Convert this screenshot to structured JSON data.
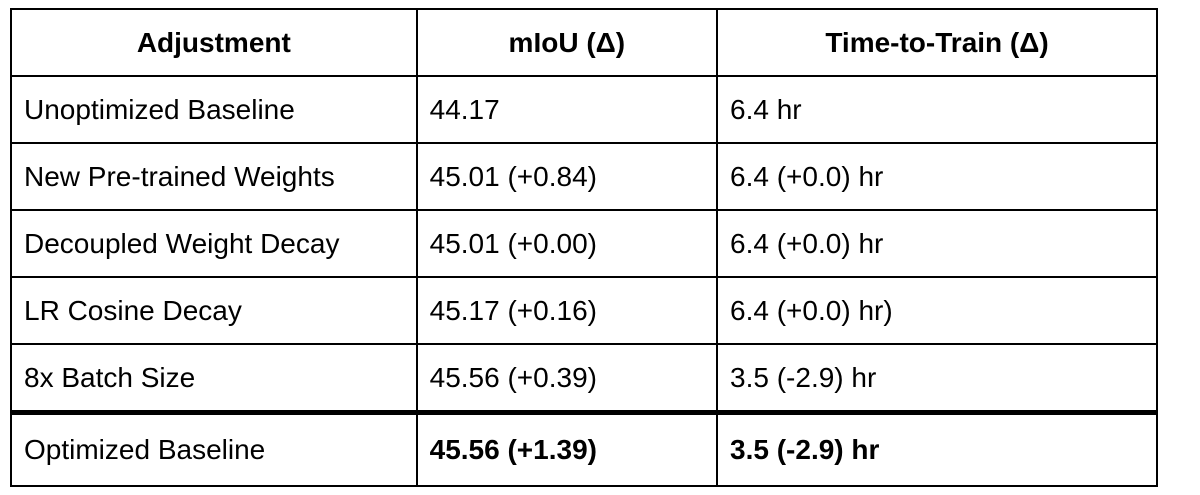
{
  "table": {
    "header": [
      "Adjustment",
      "mIoU (Δ)",
      "Time-to-Train (Δ)"
    ],
    "rows": [
      [
        "Unoptimized Baseline",
        "44.17",
        "6.4 hr"
      ],
      [
        "New Pre-trained Weights",
        "45.01 (+0.84)",
        "6.4 (+0.0) hr"
      ],
      [
        "Decoupled Weight Decay",
        "45.01 (+0.00)",
        "6.4 (+0.0) hr"
      ],
      [
        "LR Cosine Decay",
        "45.17 (+0.16)",
        "6.4 (+0.0) hr)"
      ],
      [
        "8x Batch Size",
        "45.56 (+0.39)",
        "3.5 (-2.9) hr"
      ],
      [
        "Optimized Baseline",
        "45.56 (+1.39)",
        "3.5 (-2.9) hr"
      ]
    ]
  }
}
